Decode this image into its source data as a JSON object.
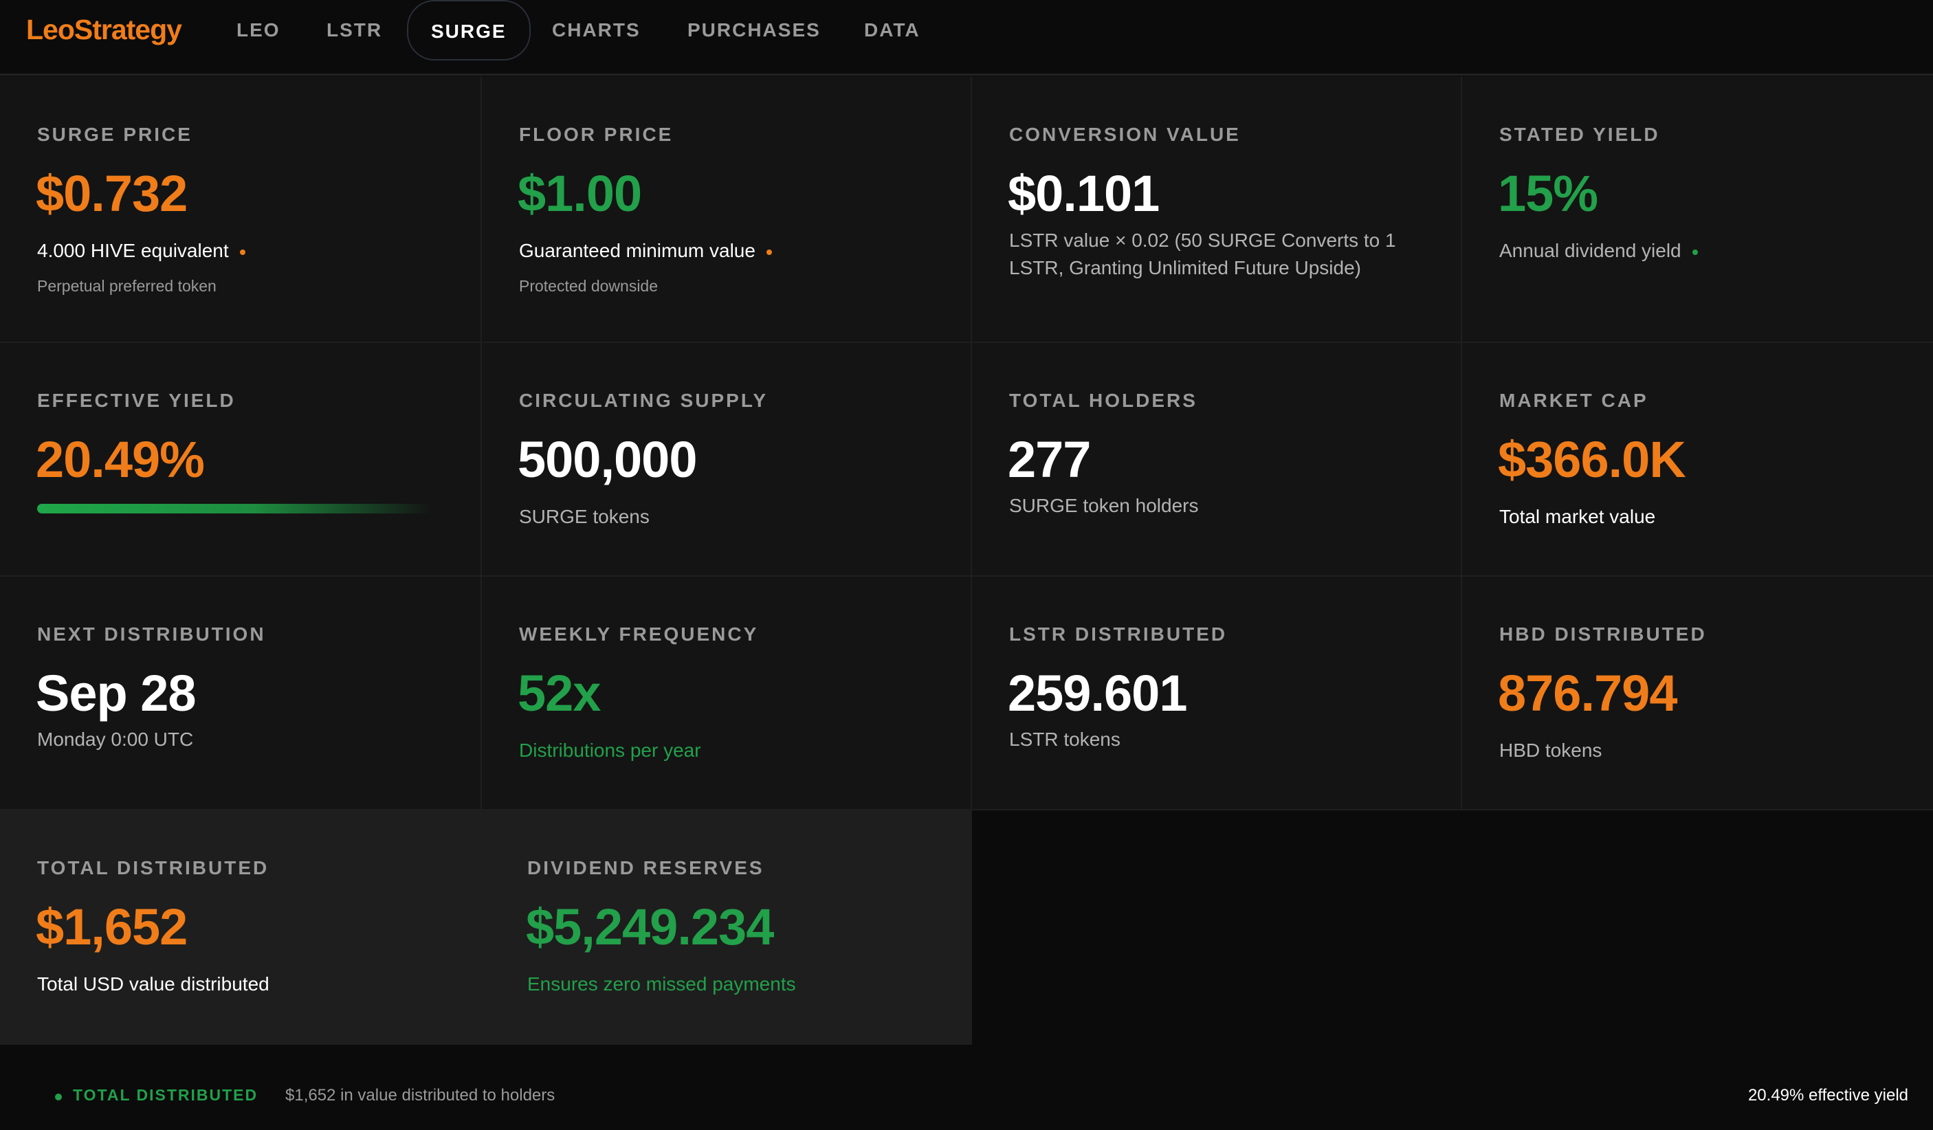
{
  "nav": {
    "logo": "LeoStrategy",
    "tabs": [
      "LEO",
      "LSTR",
      "SURGE",
      "CHARTS",
      "PURCHASES",
      "DATA"
    ],
    "active_tab": "SURGE"
  },
  "colors": {
    "orange": "#f07d1a",
    "green": "#22a04a",
    "white": "#ffffff",
    "background": "#0b0b0b",
    "card": "#141414"
  },
  "cards": {
    "surge_price": {
      "label": "SURGE PRICE",
      "value": "$0.732",
      "sub": "4.000 HIVE equivalent",
      "sub2": "Perpetual preferred token"
    },
    "floor_price": {
      "label": "FLOOR PRICE",
      "value": "$1.00",
      "sub": "Guaranteed minimum value",
      "sub2": "Protected downside"
    },
    "conversion_value": {
      "label": "CONVERSION VALUE",
      "value": "$0.101",
      "sub": "LSTR value × 0.02 (50 SURGE Converts to 1 LSTR, Granting Unlimited Future Upside)"
    },
    "stated_yield": {
      "label": "STATED YIELD",
      "value": "15%",
      "sub": "Annual dividend yield"
    },
    "effective_yield": {
      "label": "EFFECTIVE YIELD",
      "value": "20.49%"
    },
    "circulating_supply": {
      "label": "CIRCULATING SUPPLY",
      "value": "500,000",
      "sub": "SURGE tokens"
    },
    "total_holders": {
      "label": "TOTAL HOLDERS",
      "value": "277",
      "sub": "SURGE token holders"
    },
    "market_cap": {
      "label": "MARKET CAP",
      "value": "$366.0K",
      "sub": "Total market value"
    },
    "next_distribution": {
      "label": "NEXT DISTRIBUTION",
      "value": "Sep 28",
      "sub": "Monday 0:00 UTC"
    },
    "weekly_frequency": {
      "label": "WEEKLY FREQUENCY",
      "value": "52x",
      "sub": "Distributions per year"
    },
    "lstr_distributed": {
      "label": "LSTR DISTRIBUTED",
      "value": "259.601",
      "sub": "LSTR tokens"
    },
    "hbd_distributed": {
      "label": "HBD DISTRIBUTED",
      "value": "876.794",
      "sub": "HBD tokens"
    },
    "total_distributed": {
      "label": "TOTAL DISTRIBUTED",
      "value": "$1,652",
      "sub": "Total USD value distributed"
    },
    "dividend_reserves": {
      "label": "DIVIDEND RESERVES",
      "value": "$5,249.234",
      "sub": "Ensures zero missed payments"
    }
  },
  "footer": {
    "label": "TOTAL DISTRIBUTED",
    "text": "$1,652 in value distributed to holders",
    "right": "20.49% effective yield"
  }
}
